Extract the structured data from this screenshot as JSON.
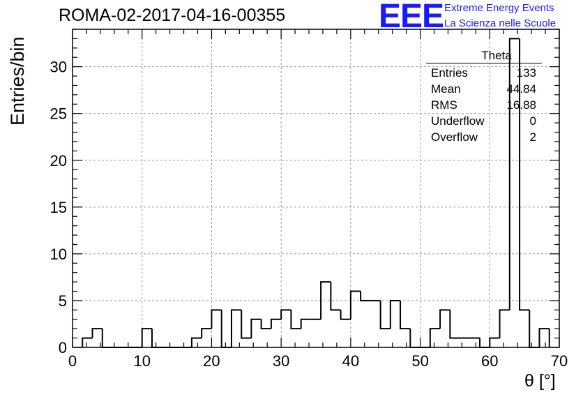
{
  "header": {
    "title": "ROMA-02-2017-04-16-00355",
    "logo_text": "EEE",
    "logo_line1": "Extreme Energy Events",
    "logo_line2": "La Scienza nelle Scuole"
  },
  "stats_box": {
    "name": "Theta",
    "rows": [
      {
        "label": "Entries",
        "value": "133"
      },
      {
        "label": "Mean",
        "value": "44.84"
      },
      {
        "label": "RMS",
        "value": "16.88"
      },
      {
        "label": "Underflow",
        "value": "0"
      },
      {
        "label": "Overflow",
        "value": "2"
      }
    ]
  },
  "chart_data": {
    "type": "bar",
    "style": "step-histogram",
    "xlabel": "θ [°]",
    "ylabel": "Entries/bin",
    "xlim": [
      0,
      70
    ],
    "ylim": [
      0,
      34
    ],
    "grid": true,
    "line_color": "#000000",
    "x_ticks": [
      0,
      10,
      20,
      30,
      40,
      50,
      60,
      70
    ],
    "y_ticks": [
      0,
      5,
      10,
      15,
      20,
      25,
      30
    ],
    "bin_width": 1.43,
    "bin_edges": [
      1.43,
      2.86,
      4.29,
      5.71,
      7.14,
      8.57,
      10.0,
      11.43,
      12.86,
      14.29,
      15.71,
      17.14,
      18.57,
      20.0,
      21.43,
      22.86,
      24.29,
      25.71,
      27.14,
      28.57,
      30.0,
      31.43,
      32.86,
      34.29,
      35.71,
      37.14,
      38.57,
      40.0,
      41.43,
      42.86,
      44.29,
      45.71,
      47.14,
      48.57,
      50.0,
      51.43,
      52.86,
      54.29,
      55.71,
      57.14,
      58.57,
      60.0,
      61.43,
      62.86,
      64.29,
      65.71,
      67.14,
      68.57
    ],
    "values": [
      1,
      2,
      0,
      0,
      0,
      0,
      2,
      0,
      0,
      0,
      0,
      1,
      2,
      4,
      0,
      4,
      1,
      3,
      2,
      3,
      4,
      2,
      3,
      3,
      7,
      4,
      3,
      6,
      5,
      5,
      2,
      5,
      2,
      0,
      0,
      2,
      4,
      1,
      1,
      1,
      0,
      1,
      4,
      33,
      4,
      0,
      2
    ]
  }
}
